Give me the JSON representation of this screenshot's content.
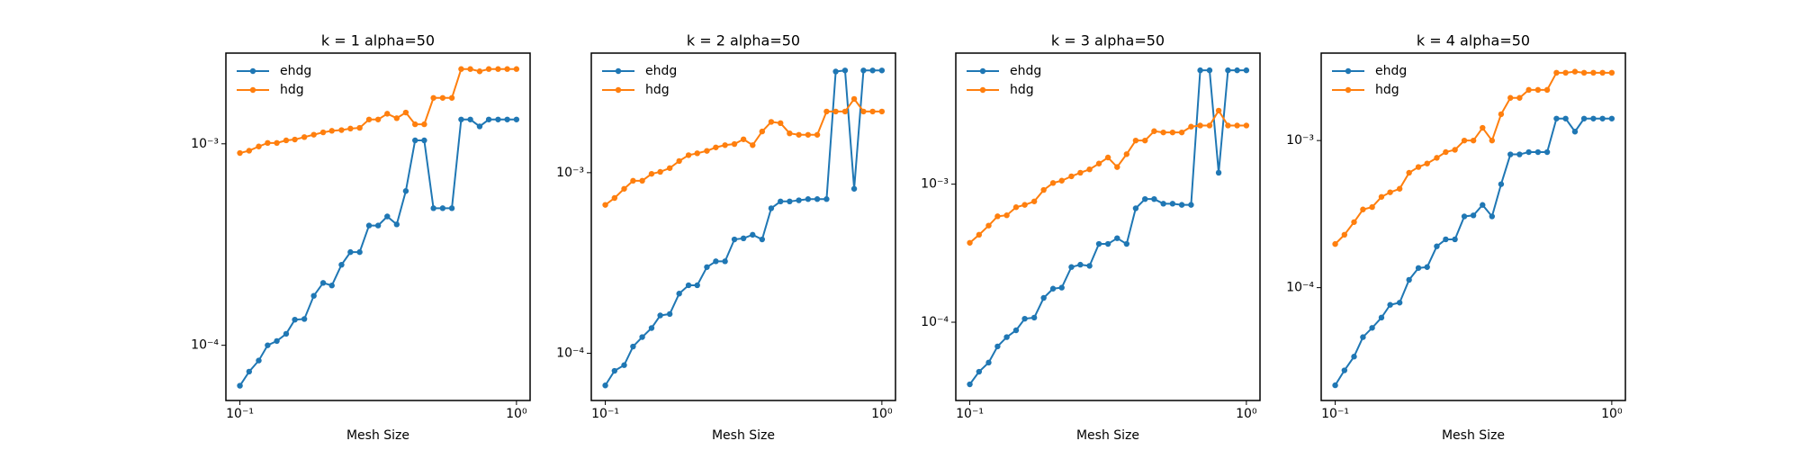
{
  "chart_data": [
    {
      "type": "line",
      "title": "k = 1 alpha=50",
      "xlabel": "Mesh Size",
      "xscale": "log",
      "yscale": "log",
      "legend": "upper left",
      "x": [
        0.1,
        0.108,
        0.117,
        0.126,
        0.136,
        0.147,
        0.158,
        0.171,
        0.185,
        0.2,
        0.215,
        0.233,
        0.251,
        0.271,
        0.293,
        0.316,
        0.341,
        0.369,
        0.398,
        0.43,
        0.464,
        0.501,
        0.541,
        0.584,
        0.631,
        0.681,
        0.736,
        0.794,
        0.858,
        0.926,
        1.0
      ],
      "xlim": [
        0.089,
        1.12
      ],
      "xticks": [
        {
          "value": 0.1,
          "label": "10⁻¹"
        },
        {
          "value": 1,
          "label": "10⁰"
        }
      ],
      "ylim": [
        5.32e-05,
        0.00282
      ],
      "yticks": [
        {
          "value": 0.0001,
          "label": "10⁻⁴"
        },
        {
          "value": 0.001,
          "label": "10⁻³"
        }
      ],
      "series": [
        {
          "name": "ehdg",
          "color": "#1f77b4",
          "values": [
            6.3e-05,
            7.4e-05,
            8.4e-05,
            0.0001,
            0.000105,
            0.000114,
            0.000134,
            0.000135,
            0.000176,
            0.000204,
            0.000198,
            0.000251,
            0.00029,
            0.00029,
            0.000393,
            0.000393,
            0.000436,
            0.000398,
            0.000583,
            0.00104,
            0.00104,
            0.000479,
            0.000479,
            0.000479,
            0.00132,
            0.00132,
            0.00122,
            0.00132,
            0.00132,
            0.00132,
            0.00132
          ]
        },
        {
          "name": "hdg",
          "color": "#ff7f0e",
          "values": [
            0.0009,
            0.000924,
            0.00097,
            0.00101,
            0.00101,
            0.00104,
            0.00105,
            0.00108,
            0.00111,
            0.00114,
            0.00116,
            0.00117,
            0.00119,
            0.0012,
            0.00132,
            0.00132,
            0.00141,
            0.00134,
            0.00143,
            0.00125,
            0.00125,
            0.00169,
            0.00169,
            0.00169,
            0.00235,
            0.00235,
            0.00229,
            0.00235,
            0.00235,
            0.00235,
            0.00235
          ]
        }
      ]
    },
    {
      "type": "line",
      "title": "k = 2 alpha=50",
      "xlabel": "Mesh Size",
      "xscale": "log",
      "yscale": "log",
      "legend": "upper left",
      "x": [
        0.1,
        0.108,
        0.117,
        0.126,
        0.136,
        0.147,
        0.158,
        0.171,
        0.185,
        0.2,
        0.215,
        0.233,
        0.251,
        0.271,
        0.293,
        0.316,
        0.341,
        0.369,
        0.398,
        0.43,
        0.464,
        0.501,
        0.541,
        0.584,
        0.631,
        0.681,
        0.736,
        0.794,
        0.858,
        0.926,
        1.0
      ],
      "xlim": [
        0.089,
        1.12
      ],
      "xticks": [
        {
          "value": 0.1,
          "label": "10⁻¹"
        },
        {
          "value": 1,
          "label": "10⁰"
        }
      ],
      "ylim": [
        5.48e-05,
        0.00459
      ],
      "yticks": [
        {
          "value": 0.0001,
          "label": "10⁻⁴"
        },
        {
          "value": 0.001,
          "label": "10⁻³"
        }
      ],
      "series": [
        {
          "name": "ehdg",
          "color": "#1f77b4",
          "values": [
            6.64e-05,
            8e-05,
            8.6e-05,
            0.000109,
            0.000123,
            0.000138,
            0.000162,
            0.000165,
            0.000214,
            0.000238,
            0.000238,
            0.0003,
            0.000323,
            0.000323,
            0.000427,
            0.000433,
            0.000453,
            0.000427,
            0.000635,
            0.000693,
            0.000693,
            0.000703,
            0.000714,
            0.000714,
            0.000714,
            0.00363,
            0.00368,
            0.000814,
            0.00368,
            0.00368,
            0.00368
          ]
        },
        {
          "name": "hdg",
          "color": "#ff7f0e",
          "values": [
            0.000663,
            0.000724,
            0.000814,
            0.000902,
            0.000902,
            0.000985,
            0.00101,
            0.00106,
            0.00116,
            0.00125,
            0.00128,
            0.00132,
            0.00138,
            0.00142,
            0.00144,
            0.00153,
            0.00142,
            0.00169,
            0.00191,
            0.00188,
            0.00165,
            0.00162,
            0.00162,
            0.00162,
            0.00218,
            0.00218,
            0.00218,
            0.00256,
            0.00218,
            0.00218,
            0.00218
          ]
        }
      ]
    },
    {
      "type": "line",
      "title": "k = 3 alpha=50",
      "xlabel": "Mesh Size",
      "xscale": "log",
      "yscale": "log",
      "legend": "upper left",
      "x": [
        0.1,
        0.108,
        0.117,
        0.126,
        0.136,
        0.147,
        0.158,
        0.171,
        0.185,
        0.2,
        0.215,
        0.233,
        0.251,
        0.271,
        0.293,
        0.316,
        0.341,
        0.369,
        0.398,
        0.43,
        0.464,
        0.501,
        0.541,
        0.584,
        0.631,
        0.681,
        0.736,
        0.794,
        0.858,
        0.926,
        1.0
      ],
      "xlim": [
        0.089,
        1.12
      ],
      "xticks": [
        {
          "value": 0.1,
          "label": "10⁻¹"
        },
        {
          "value": 1,
          "label": "10⁰"
        }
      ],
      "ylim": [
        2.71e-05,
        0.0089
      ],
      "yticks": [
        {
          "value": 0.0001,
          "label": "10⁻⁴"
        },
        {
          "value": 0.001,
          "label": "10⁻³"
        }
      ],
      "series": [
        {
          "name": "ehdg",
          "color": "#1f77b4",
          "values": [
            3.55e-05,
            4.38e-05,
            5.1e-05,
            6.68e-05,
            7.8e-05,
            8.74e-05,
            0.000106,
            0.000108,
            0.00015,
            0.000175,
            0.000178,
            0.000251,
            0.000261,
            0.000256,
            0.000369,
            0.000369,
            0.000406,
            0.000369,
            0.000668,
            0.00078,
            0.00078,
            0.000722,
            0.000722,
            0.000708,
            0.000708,
            0.00668,
            0.00668,
            0.00121,
            0.00668,
            0.00668,
            0.00668
          ]
        },
        {
          "name": "hdg",
          "color": "#ff7f0e",
          "values": [
            0.000376,
            0.00043,
            0.000501,
            0.000585,
            0.000595,
            0.000681,
            0.000708,
            0.00075,
            0.000908,
            0.00102,
            0.00106,
            0.00114,
            0.00121,
            0.00128,
            0.00141,
            0.00156,
            0.00133,
            0.00165,
            0.00207,
            0.00207,
            0.00242,
            0.00237,
            0.00237,
            0.00237,
            0.00261,
            0.00266,
            0.00266,
            0.00341,
            0.00266,
            0.00266,
            0.00266
          ]
        }
      ]
    },
    {
      "type": "line",
      "title": "k = 4 alpha=50",
      "xlabel": "Mesh Size",
      "xscale": "log",
      "yscale": "log",
      "legend": "upper left",
      "x": [
        0.1,
        0.108,
        0.117,
        0.126,
        0.136,
        0.147,
        0.158,
        0.171,
        0.185,
        0.2,
        0.215,
        0.233,
        0.251,
        0.271,
        0.293,
        0.316,
        0.341,
        0.369,
        0.398,
        0.43,
        0.464,
        0.501,
        0.541,
        0.584,
        0.631,
        0.681,
        0.736,
        0.794,
        0.858,
        0.926,
        1.0
      ],
      "xlim": [
        0.089,
        1.12
      ],
      "xticks": [
        {
          "value": 0.1,
          "label": "10⁻¹"
        },
        {
          "value": 1,
          "label": "10⁰"
        }
      ],
      "ylim": [
        1.71e-05,
        0.00393
      ],
      "yticks": [
        {
          "value": 0.0001,
          "label": "10⁻⁴"
        },
        {
          "value": 0.001,
          "label": "10⁻³"
        }
      ],
      "series": [
        {
          "name": "ehdg",
          "color": "#1f77b4",
          "values": [
            2.17e-05,
            2.74e-05,
            3.4e-05,
            4.61e-05,
            5.33e-05,
            6.26e-05,
            7.64e-05,
            7.91e-05,
            0.000113,
            0.000136,
            0.000138,
            0.000191,
            0.000213,
            0.000213,
            0.000305,
            0.00031,
            0.000365,
            0.000305,
            0.000505,
            0.000805,
            0.000805,
            0.000834,
            0.000834,
            0.000834,
            0.00141,
            0.00141,
            0.00115,
            0.00141,
            0.00141,
            0.00141,
            0.00141
          ]
        },
        {
          "name": "hdg",
          "color": "#ff7f0e",
          "values": [
            0.000198,
            0.000229,
            0.000279,
            0.00034,
            0.000353,
            0.000414,
            0.000445,
            0.00047,
            0.000604,
            0.000661,
            0.000698,
            0.000763,
            0.000835,
            0.000865,
            0.001,
            0.001,
            0.00122,
            0.001,
            0.00151,
            0.00195,
            0.00195,
            0.00221,
            0.00221,
            0.00221,
            0.00289,
            0.00289,
            0.00294,
            0.00289,
            0.00289,
            0.00289,
            0.00289
          ]
        }
      ]
    }
  ]
}
